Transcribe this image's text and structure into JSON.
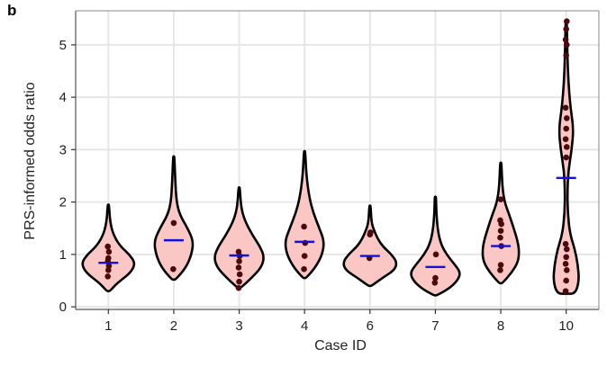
{
  "panel_label": "b",
  "colors": {
    "violin_fill": "#fbc7c4",
    "violin_stroke": "#000000",
    "point": "#4a0a0e",
    "median_line": "#1010e0",
    "grid": "#e6e6e6"
  },
  "chart_data": {
    "type": "violin",
    "xlabel": "Case ID",
    "ylabel": "PRS-informed odds ratio",
    "ylim": [
      -0.05,
      5.65
    ],
    "yticks": [
      "0",
      "1",
      "2",
      "3",
      "4",
      "5"
    ],
    "categories": [
      "1",
      "2",
      "3",
      "4",
      "6",
      "7",
      "8",
      "10"
    ],
    "grid": true,
    "violins": [
      {
        "case": "1",
        "min": 0.3,
        "max": 1.95,
        "profile": [
          [
            0.3,
            0.05
          ],
          [
            0.45,
            0.28
          ],
          [
            0.6,
            0.62
          ],
          [
            0.72,
            0.8
          ],
          [
            0.85,
            0.86
          ],
          [
            1.0,
            0.68
          ],
          [
            1.15,
            0.4
          ],
          [
            1.35,
            0.18
          ],
          [
            1.6,
            0.06
          ],
          [
            1.95,
            0.02
          ]
        ],
        "points": [
          0.58,
          0.7,
          0.78,
          0.87,
          0.93,
          1.05,
          1.15
        ],
        "median": 0.84
      },
      {
        "case": "2",
        "min": 0.52,
        "max": 2.87,
        "profile": [
          [
            0.52,
            0.06
          ],
          [
            0.75,
            0.4
          ],
          [
            1.0,
            0.58
          ],
          [
            1.25,
            0.64
          ],
          [
            1.5,
            0.45
          ],
          [
            1.75,
            0.2
          ],
          [
            2.0,
            0.09
          ],
          [
            2.4,
            0.05
          ],
          [
            2.87,
            0.02
          ]
        ],
        "points": [
          0.72,
          1.6
        ],
        "median": 1.27
      },
      {
        "case": "3",
        "min": 0.36,
        "max": 2.28,
        "profile": [
          [
            0.36,
            0.05
          ],
          [
            0.55,
            0.4
          ],
          [
            0.75,
            0.72
          ],
          [
            0.95,
            0.82
          ],
          [
            1.15,
            0.68
          ],
          [
            1.35,
            0.45
          ],
          [
            1.6,
            0.22
          ],
          [
            1.8,
            0.1
          ],
          [
            2.0,
            0.05
          ],
          [
            2.28,
            0.02
          ]
        ],
        "points": [
          0.36,
          0.48,
          0.62,
          0.75,
          0.87,
          0.97,
          1.05
        ],
        "median": 0.98
      },
      {
        "case": "4",
        "min": 0.55,
        "max": 2.97,
        "profile": [
          [
            0.55,
            0.05
          ],
          [
            0.75,
            0.35
          ],
          [
            1.0,
            0.58
          ],
          [
            1.25,
            0.64
          ],
          [
            1.5,
            0.48
          ],
          [
            1.8,
            0.28
          ],
          [
            2.1,
            0.15
          ],
          [
            2.5,
            0.06
          ],
          [
            2.97,
            0.02
          ]
        ],
        "points": [
          0.72,
          0.97,
          1.22,
          1.53
        ],
        "median": 1.24
      },
      {
        "case": "6",
        "min": 0.4,
        "max": 1.93,
        "profile": [
          [
            0.4,
            0.05
          ],
          [
            0.55,
            0.4
          ],
          [
            0.7,
            0.8
          ],
          [
            0.85,
            0.88
          ],
          [
            1.0,
            0.7
          ],
          [
            1.15,
            0.42
          ],
          [
            1.3,
            0.25
          ],
          [
            1.45,
            0.14
          ],
          [
            1.6,
            0.05
          ],
          [
            1.93,
            0.02
          ]
        ],
        "points": [
          0.93,
          1.38,
          1.42
        ],
        "median": 0.97
      },
      {
        "case": "7",
        "min": 0.22,
        "max": 2.1,
        "profile": [
          [
            0.22,
            0.05
          ],
          [
            0.35,
            0.45
          ],
          [
            0.5,
            0.72
          ],
          [
            0.65,
            0.82
          ],
          [
            0.8,
            0.64
          ],
          [
            1.0,
            0.36
          ],
          [
            1.2,
            0.18
          ],
          [
            1.45,
            0.08
          ],
          [
            1.8,
            0.03
          ],
          [
            2.1,
            0.02
          ]
        ],
        "points": [
          0.46,
          0.55,
          1.0
        ],
        "median": 0.76
      },
      {
        "case": "8",
        "min": 0.45,
        "max": 2.75,
        "profile": [
          [
            0.45,
            0.05
          ],
          [
            0.65,
            0.35
          ],
          [
            0.85,
            0.56
          ],
          [
            1.05,
            0.6
          ],
          [
            1.25,
            0.55
          ],
          [
            1.5,
            0.42
          ],
          [
            1.75,
            0.28
          ],
          [
            2.0,
            0.12
          ],
          [
            2.3,
            0.05
          ],
          [
            2.75,
            0.02
          ]
        ],
        "points": [
          0.7,
          0.8,
          1.16,
          1.32,
          1.45,
          1.58,
          1.65,
          2.05
        ],
        "median": 1.16
      },
      {
        "case": "10",
        "min": 0.25,
        "max": 5.45,
        "profile": [
          [
            0.25,
            0.3
          ],
          [
            0.5,
            0.42
          ],
          [
            0.8,
            0.38
          ],
          [
            1.1,
            0.28
          ],
          [
            1.4,
            0.12
          ],
          [
            1.8,
            0.05
          ],
          [
            2.2,
            0.04
          ],
          [
            2.6,
            0.07
          ],
          [
            3.0,
            0.18
          ],
          [
            3.4,
            0.24
          ],
          [
            3.8,
            0.14
          ],
          [
            4.3,
            0.07
          ],
          [
            4.8,
            0.04
          ],
          [
            5.45,
            0.02
          ]
        ],
        "points": [
          0.3,
          0.5,
          0.7,
          0.82,
          0.95,
          1.1,
          1.2,
          2.85,
          3.05,
          3.2,
          3.4,
          3.6,
          3.8,
          4.8,
          5.0,
          5.1,
          5.3,
          5.45
        ],
        "median": 2.46
      }
    ]
  }
}
